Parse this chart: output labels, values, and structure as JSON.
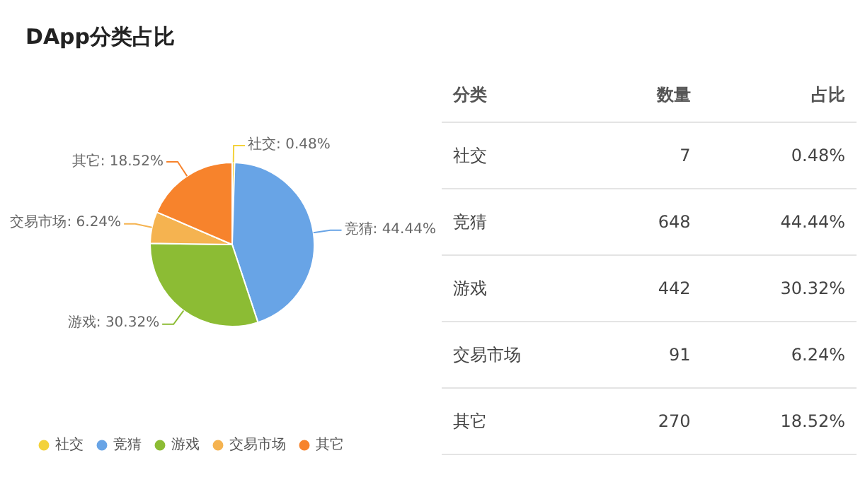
{
  "chart_data": [
    {
      "type": "pie",
      "title": "DApp分类占比",
      "categories": [
        "社交",
        "竞猜",
        "游戏",
        "交易市场",
        "其它"
      ],
      "values": [
        0.48,
        44.44,
        30.32,
        6.24,
        18.52
      ],
      "value_labels": [
        "社交: 0.48%",
        "竞猜: 44.44%",
        "游戏: 30.32%",
        "交易市场: 6.24%",
        "其它: 18.52%"
      ],
      "colors": [
        "#f3d23b",
        "#68a4e6",
        "#8cbc34",
        "#f5b350",
        "#f7832c"
      ],
      "legend": "bottom left"
    },
    {
      "type": "other",
      "annotations": [
        "分类",
        "数量",
        "占比",
        "社交",
        "7",
        "0.48%",
        "竞猜",
        "648",
        "44.44%",
        "游戏",
        "442",
        "30.32%",
        "交易市场",
        "91",
        "6.24%",
        "其它",
        "270",
        "18.52%"
      ]
    }
  ]
}
